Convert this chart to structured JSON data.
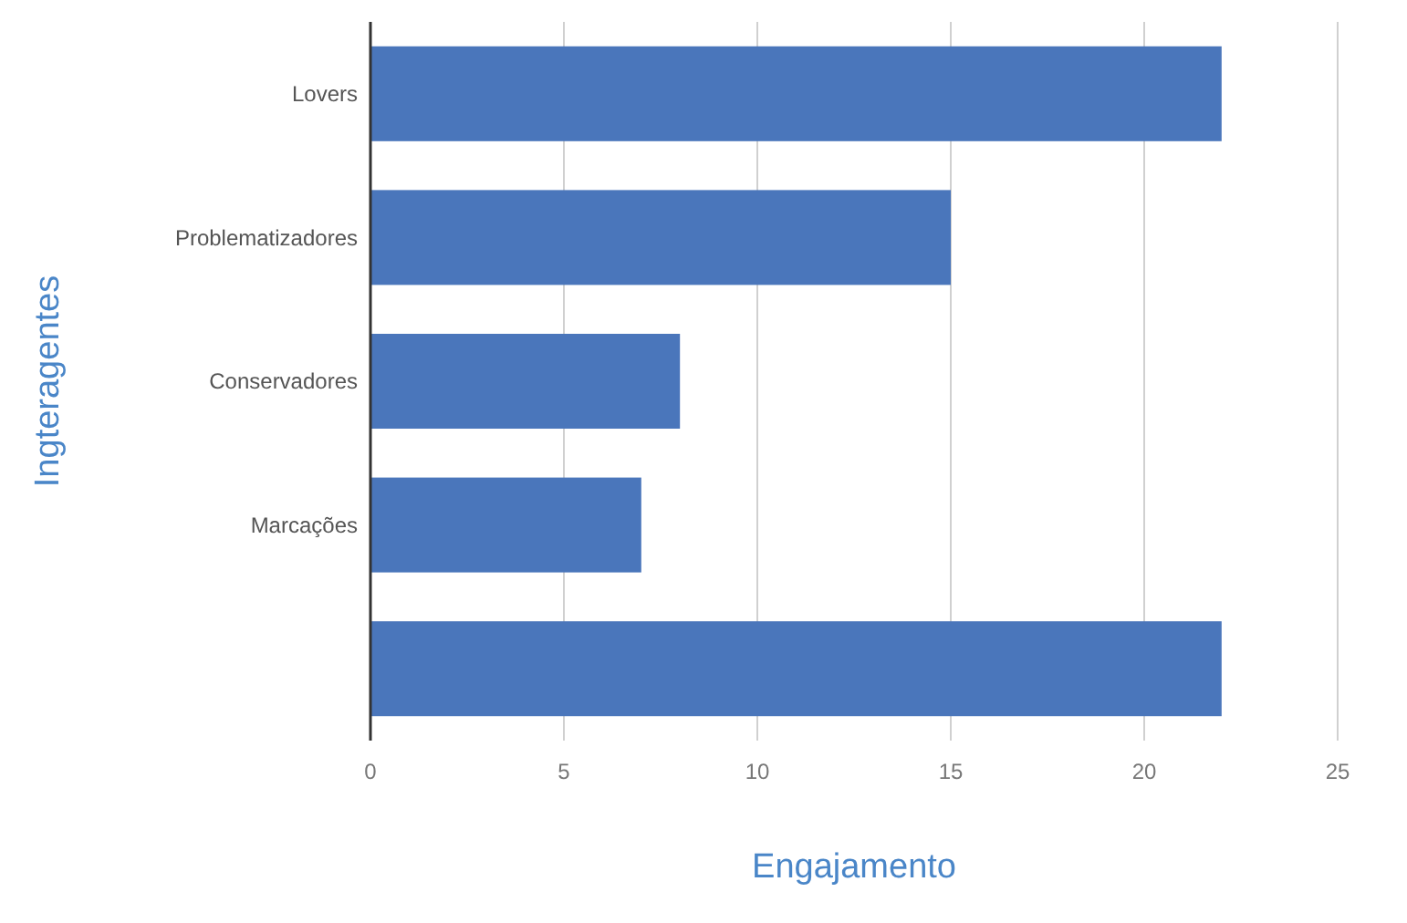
{
  "chart_data": {
    "type": "bar",
    "orientation": "horizontal",
    "xlabel": "Engajamento",
    "ylabel": "Ingteragentes",
    "categories": [
      "Lovers",
      "Problematizadores",
      "Conservadores",
      "Marcações",
      null
    ],
    "values": [
      22,
      15,
      8,
      7,
      22
    ],
    "color": "#4a76bb",
    "xlim": [
      0,
      25
    ],
    "xticks": [
      0,
      5,
      10,
      15,
      20,
      25
    ],
    "grid": "x"
  }
}
